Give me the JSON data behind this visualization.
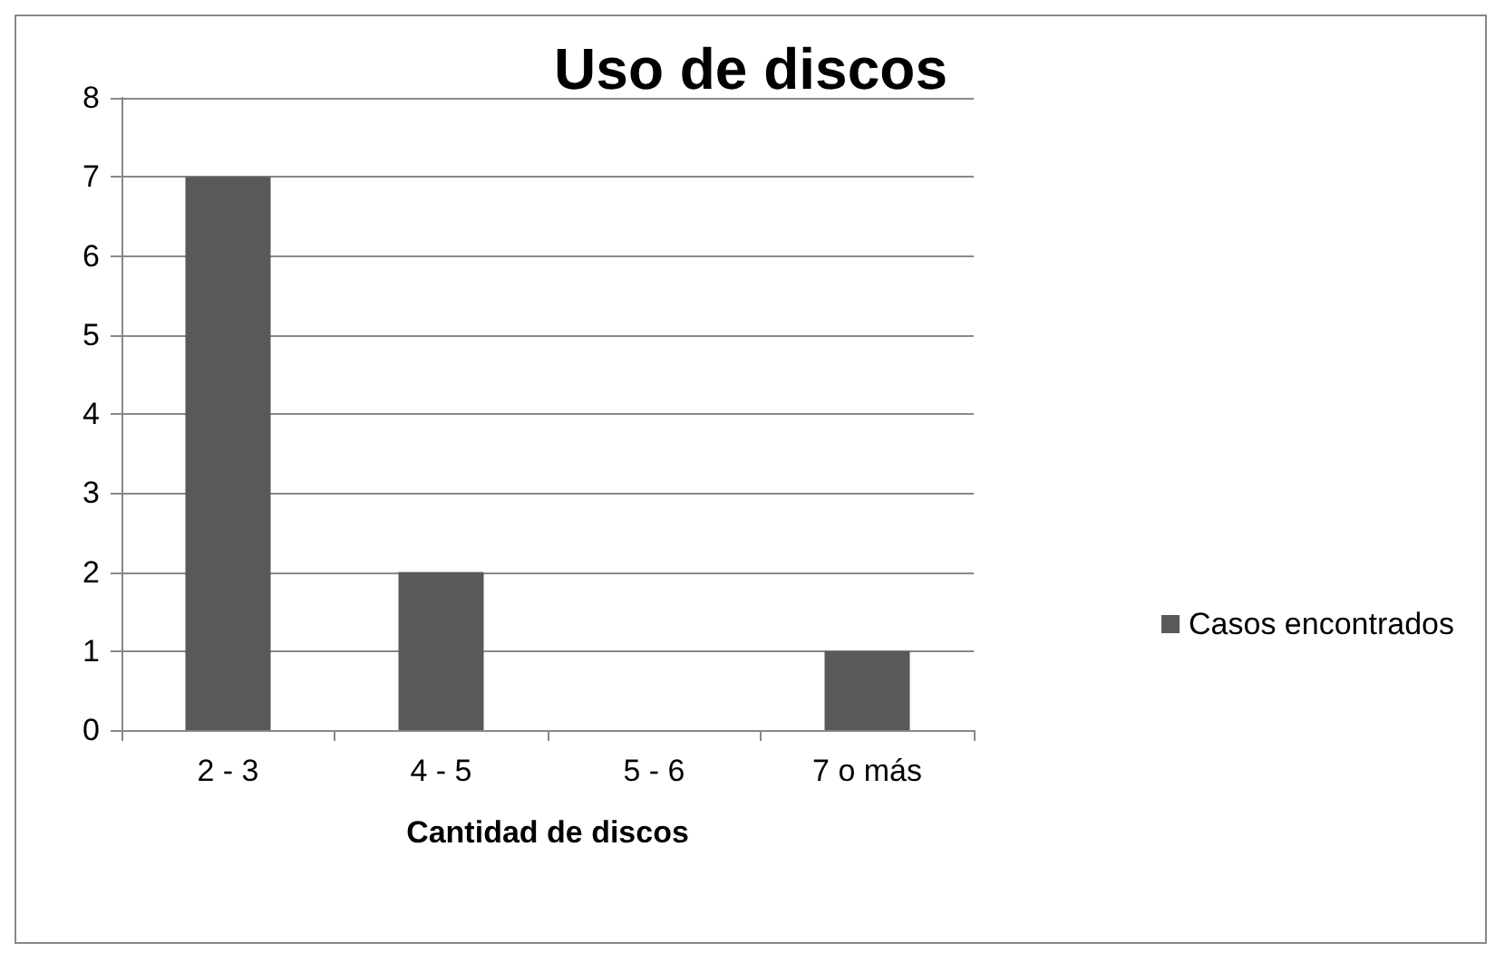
{
  "chart_data": {
    "type": "bar",
    "title": "Uso de discos",
    "xlabel": "Cantidad de discos",
    "categories": [
      "2 - 3",
      "4 - 5",
      "5 - 6",
      "7 o más"
    ],
    "series": [
      {
        "name": "Casos encontrados",
        "color": "#595959",
        "values": [
          7,
          2,
          0,
          1
        ]
      }
    ],
    "ylim": [
      0,
      8
    ],
    "yticks": [
      0,
      1,
      2,
      3,
      4,
      5,
      6,
      7,
      8
    ],
    "grid": "y",
    "legend": "right"
  }
}
